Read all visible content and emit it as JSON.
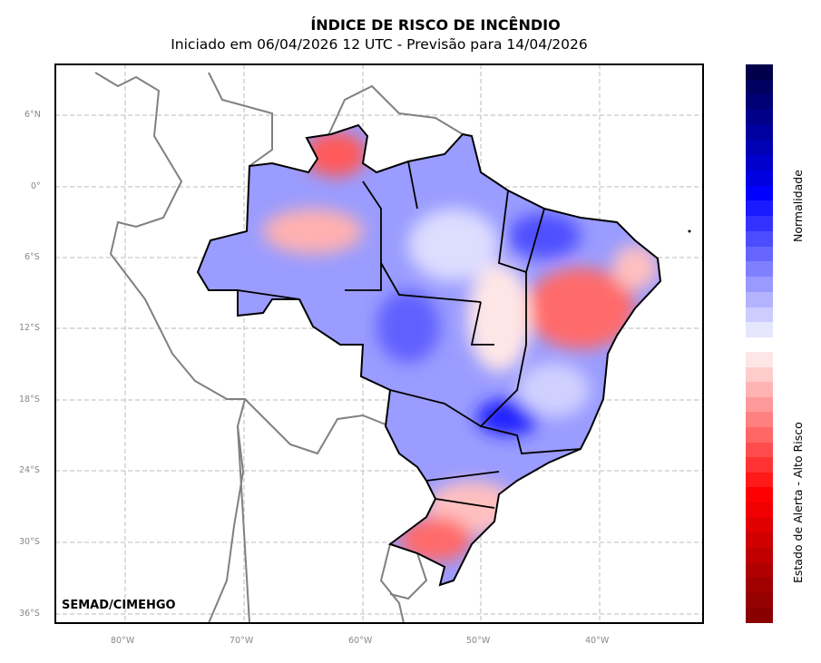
{
  "title": "ÍNDICE DE RISCO DE INCÊNDIO",
  "subtitle": "Iniciado em 06/04/2026 12 UTC - Previsão para 14/04/2026",
  "credit": "SEMAD/CIMEHGO",
  "lat_ticks": [
    "6°N",
    "0°",
    "6°S",
    "12°S",
    "18°S",
    "24°S",
    "30°S",
    "36°S"
  ],
  "lon_ticks": [
    "80°W",
    "70°W",
    "60°W",
    "50°W",
    "40°W"
  ],
  "colorbar": {
    "blue_label": "Normalidade",
    "red_label": "Estado de Alerta - Alto Risco",
    "blue_colors": [
      "#00004a",
      "#000060",
      "#000075",
      "#00008a",
      "#0000a0",
      "#0000b5",
      "#0000cc",
      "#0000e0",
      "#0000ff",
      "#1a1aff",
      "#3333ff",
      "#4d4dff",
      "#6666ff",
      "#8080ff",
      "#9999ff",
      "#b3b3ff",
      "#ccccff",
      "#e6e6ff"
    ],
    "red_colors": [
      "#ffe6e6",
      "#ffcccc",
      "#ffb3b3",
      "#ff9999",
      "#ff8080",
      "#ff6666",
      "#ff4d4d",
      "#ff3333",
      "#ff1a1a",
      "#ff0000",
      "#f00000",
      "#e00000",
      "#d00000",
      "#c00000",
      "#b00000",
      "#a00000",
      "#950000",
      "#8a0000"
    ]
  }
}
